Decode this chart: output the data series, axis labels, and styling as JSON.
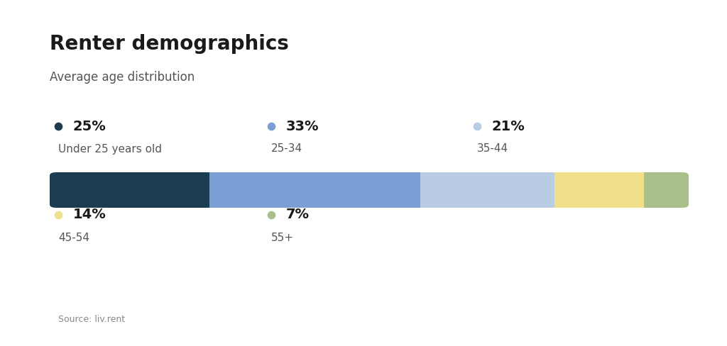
{
  "title": "Renter demographics",
  "subtitle": "Average age distribution",
  "source": "Source: liv.rent",
  "segments": [
    {
      "label": "Under 25 years old",
      "pct_text": "25%",
      "value": 25,
      "color": "#1c3d50"
    },
    {
      "label": "25-34",
      "pct_text": "33%",
      "value": 33,
      "color": "#7b9fd4"
    },
    {
      "label": "35-44",
      "pct_text": "21%",
      "value": 21,
      "color": "#b8cce4"
    },
    {
      "label": "45-54",
      "pct_text": "14%",
      "value": 14,
      "color": "#f0e08a"
    },
    {
      "label": "55+",
      "pct_text": "7%",
      "value": 7,
      "color": "#a8bf8a"
    }
  ],
  "background_color": "#ffffff",
  "title_fontsize": 20,
  "subtitle_fontsize": 12,
  "pct_fontsize": 14,
  "label_fontsize": 11,
  "source_fontsize": 9,
  "dot_size": 70
}
